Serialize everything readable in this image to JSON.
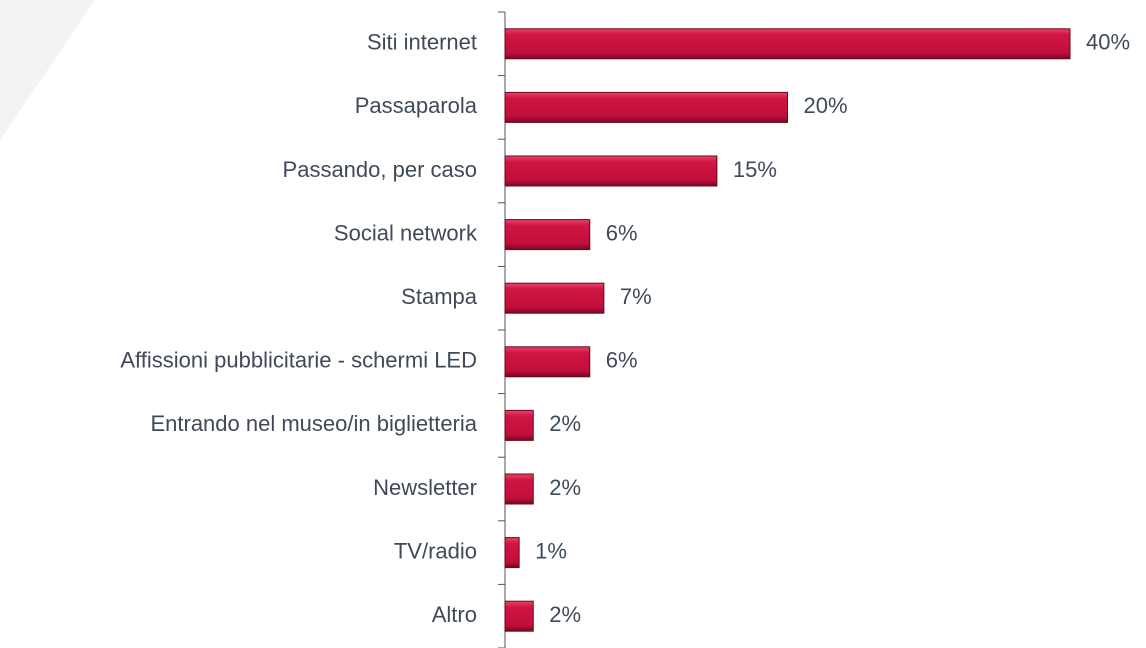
{
  "chart_data": {
    "type": "bar",
    "orientation": "horizontal",
    "categories": [
      "Siti internet",
      "Passaparola",
      "Passando, per caso",
      "Social network",
      "Stampa",
      "Affissioni pubblicitarie - schermi LED",
      "Entrando nel museo/in biglietteria",
      "Newsletter",
      "TV/radio",
      "Altro"
    ],
    "values": [
      40,
      20,
      15,
      6,
      7,
      6,
      2,
      2,
      1,
      2
    ],
    "value_labels": [
      "40%",
      "20%",
      "15%",
      "6%",
      "7%",
      "6%",
      "2%",
      "2%",
      "1%",
      "2%"
    ],
    "color": "#c8103e"
  }
}
